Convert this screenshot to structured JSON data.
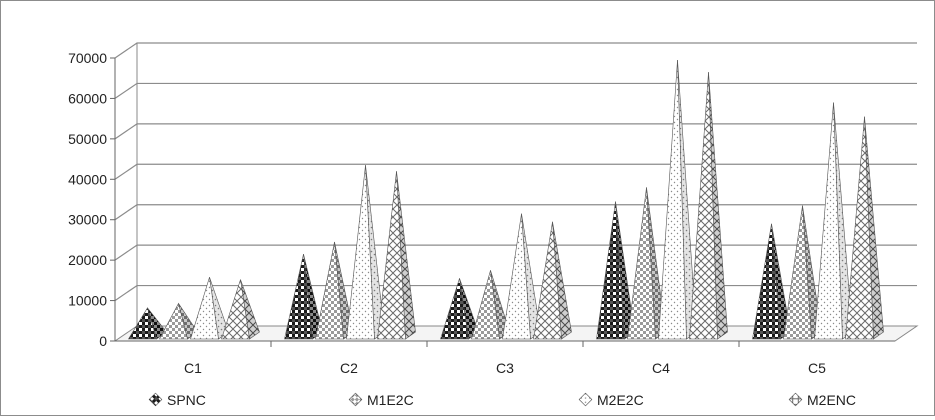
{
  "chart_data": {
    "type": "bar",
    "style": "3d-pyramid",
    "categories": [
      "C1",
      "C2",
      "C3",
      "C4",
      "C5"
    ],
    "series": [
      {
        "name": "SPNC",
        "values": [
          7200,
          20500,
          14500,
          33500,
          28000
        ],
        "pattern": "dark-checker"
      },
      {
        "name": "M1E2C",
        "values": [
          8300,
          23500,
          16500,
          37000,
          32500
        ],
        "pattern": "light-checker"
      },
      {
        "name": "M2E2C",
        "values": [
          14800,
          42500,
          30500,
          68500,
          58000
        ],
        "pattern": "dots"
      },
      {
        "name": "M2ENC",
        "values": [
          14200,
          41000,
          28500,
          65500,
          54500
        ],
        "pattern": "diamond-grid"
      }
    ],
    "y_ticks": [
      "0",
      "10000",
      "20000",
      "30000",
      "40000",
      "50000",
      "60000",
      "70000"
    ],
    "ylim": [
      0,
      70000
    ],
    "grid": true,
    "legend_position": "bottom"
  }
}
